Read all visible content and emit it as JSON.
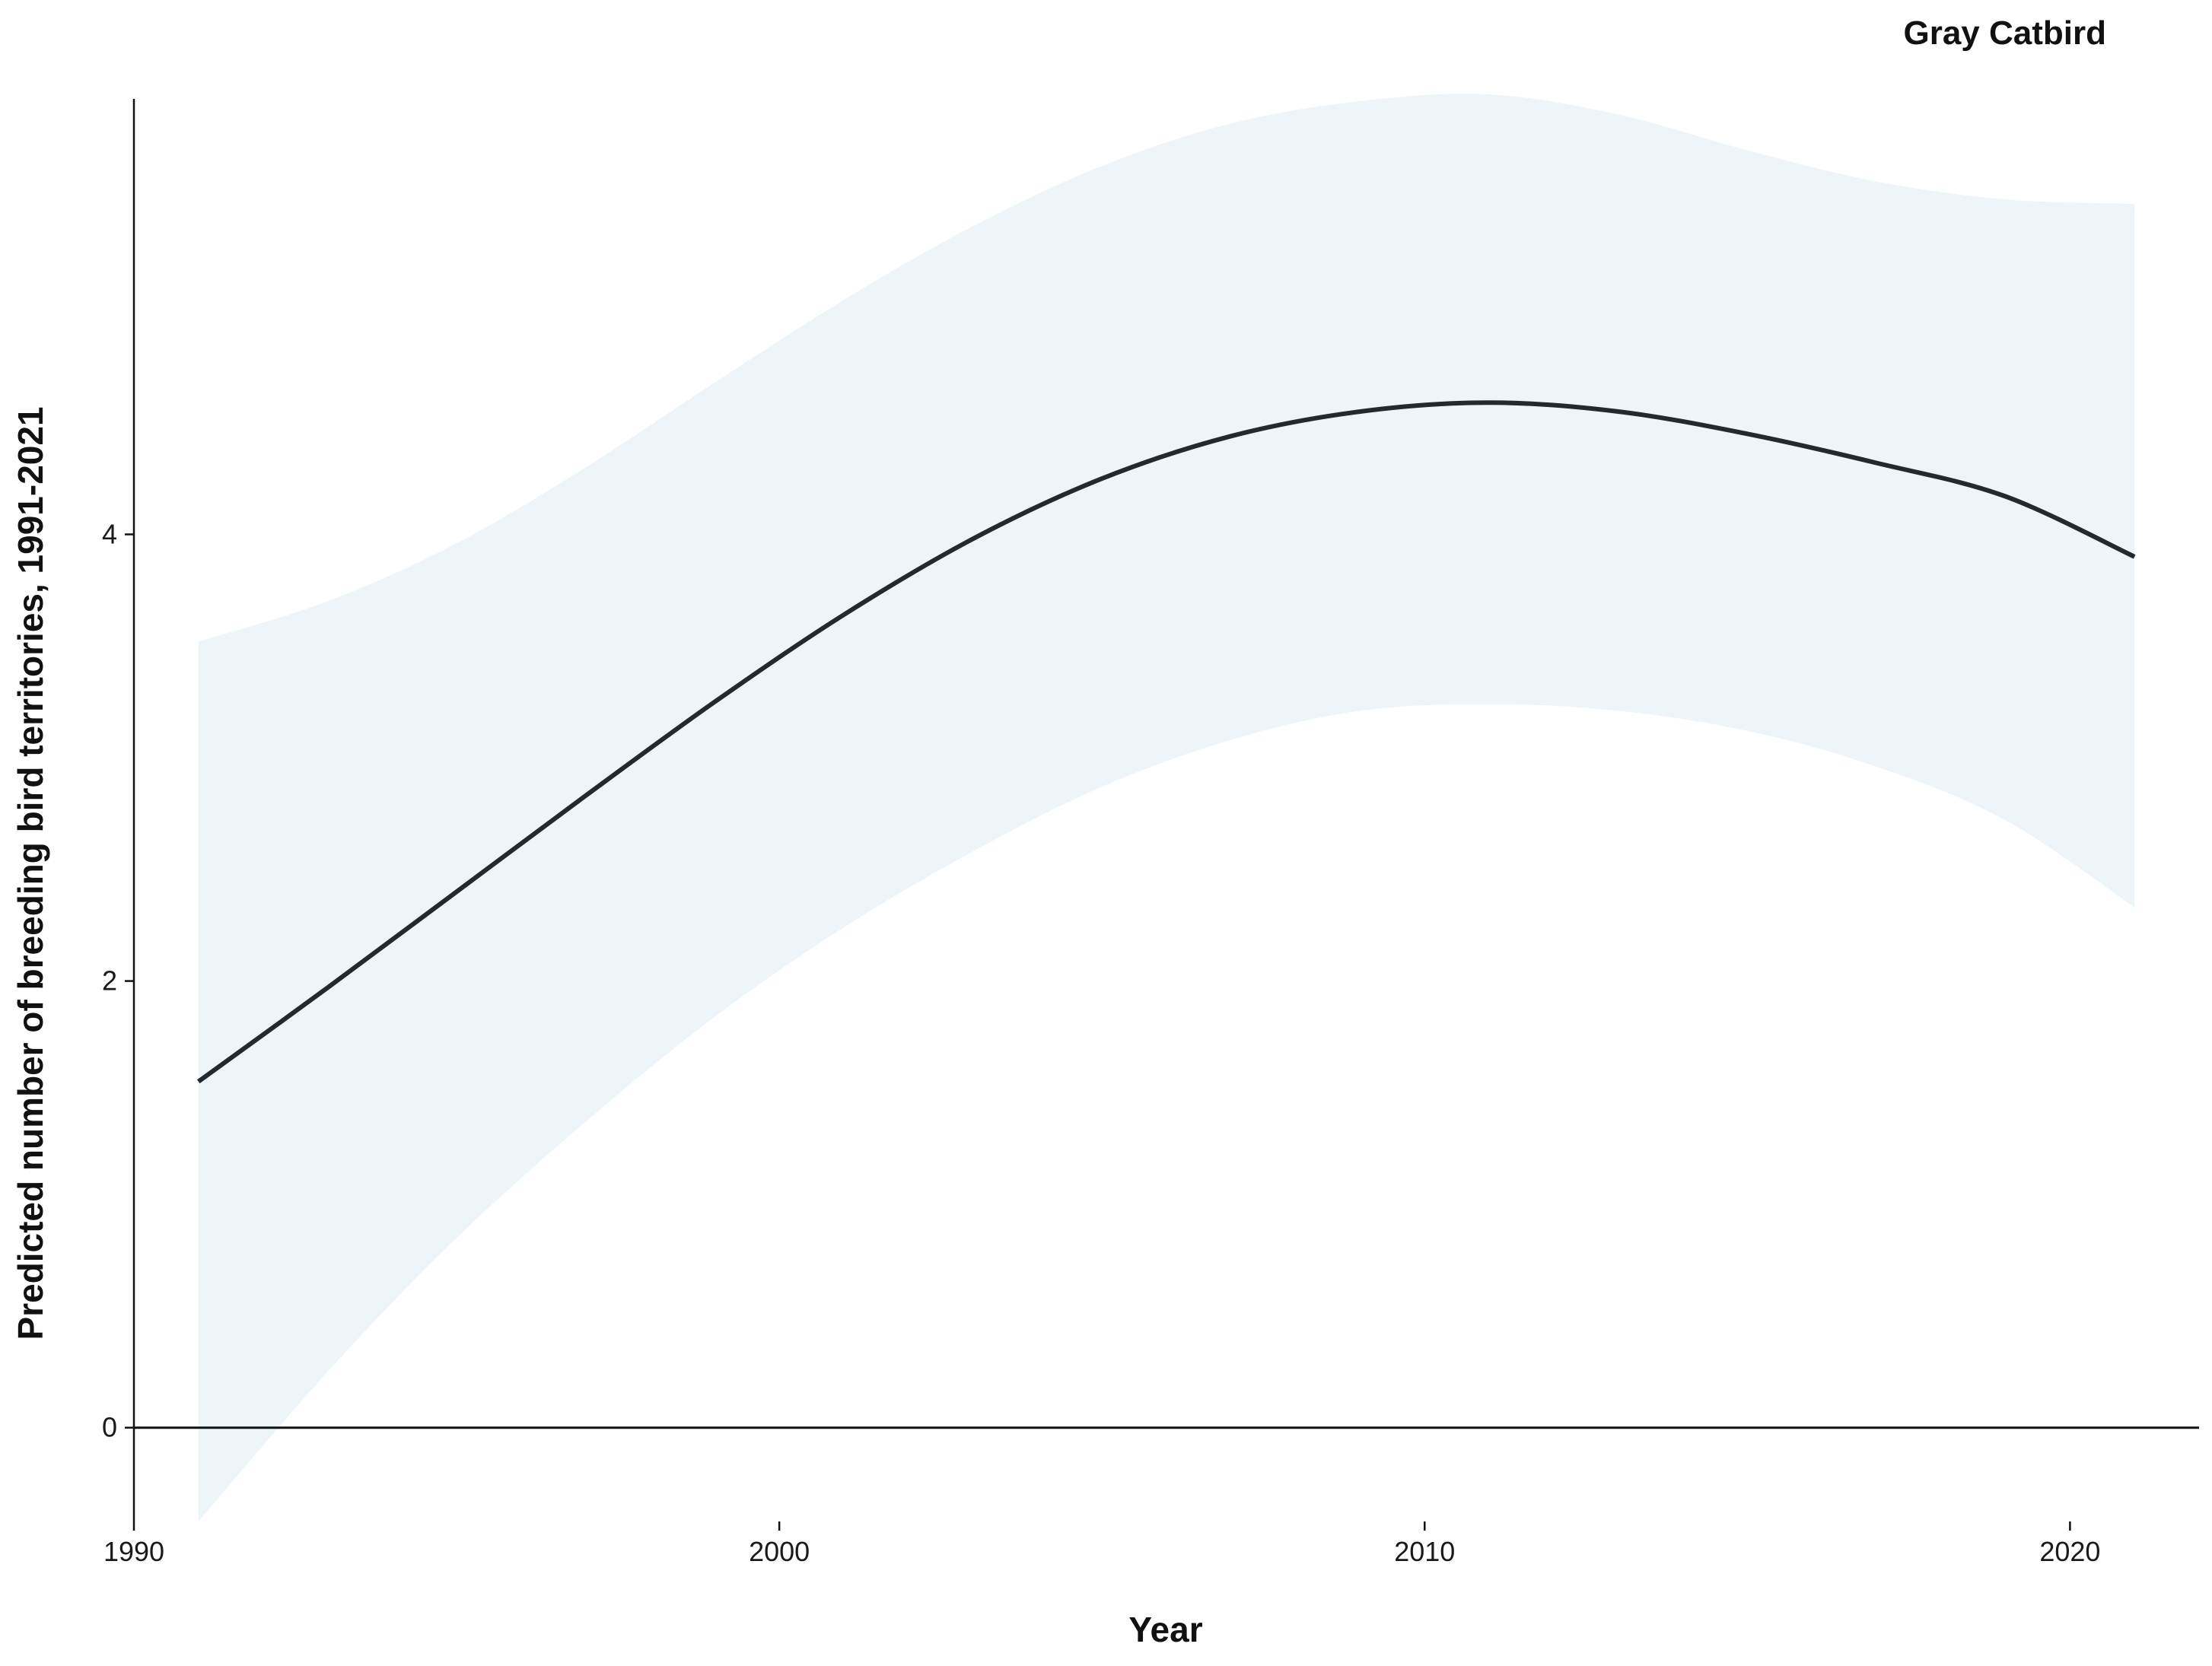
{
  "chart_data": {
    "type": "line",
    "title": "Gray Catbird",
    "xlabel": "Year",
    "ylabel": "Predicted number of breeding bird territories, 1991-2021",
    "xlim": [
      1990,
      2022
    ],
    "ylim": [
      -0.42,
      5.95
    ],
    "x_ticks": [
      1990,
      2000,
      2010,
      2020
    ],
    "y_ticks": [
      0,
      2,
      4
    ],
    "grid": false,
    "reference_line_y": 0,
    "series": [
      {
        "x": [
          1991,
          1993,
          1995,
          1997,
          1999,
          2001,
          2003,
          2005,
          2007,
          2009,
          2011,
          2013,
          2015,
          2017,
          2019,
          2021
        ],
        "values": [
          1.55,
          1.97,
          2.4,
          2.83,
          3.25,
          3.64,
          3.98,
          4.25,
          4.44,
          4.55,
          4.59,
          4.55,
          4.45,
          4.32,
          4.17,
          3.9
        ],
        "upper": [
          3.52,
          3.7,
          3.96,
          4.3,
          4.68,
          5.05,
          5.38,
          5.65,
          5.84,
          5.94,
          5.97,
          5.88,
          5.72,
          5.58,
          5.5,
          5.48
        ],
        "lower": [
          -0.42,
          0.25,
          0.85,
          1.37,
          1.84,
          2.24,
          2.58,
          2.87,
          3.08,
          3.21,
          3.24,
          3.21,
          3.12,
          2.96,
          2.72,
          2.33
        ]
      }
    ],
    "colors": {
      "line": "#222a2e",
      "ribbon": "#edf5f9",
      "axis": "#111111"
    }
  }
}
